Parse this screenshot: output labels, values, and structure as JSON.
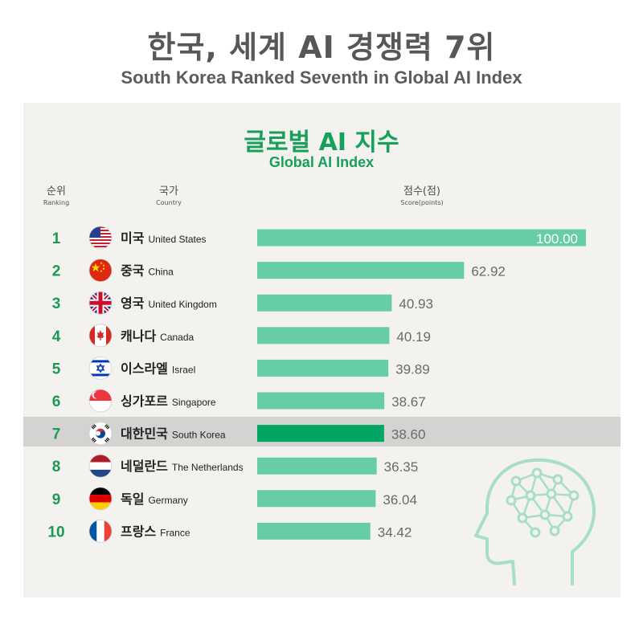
{
  "header": {
    "title_ko": "한국, 세계 AI 경쟁력 7위",
    "title_en": "South Korea Ranked Seventh in Global AI Index"
  },
  "columns": {
    "rank_ko": "순위",
    "rank_en": "Ranking",
    "country_ko": "국가",
    "country_en": "Country",
    "score_ko": "점수(점)",
    "score_en": "Score(points)"
  },
  "colors": {
    "bar": "#67cda4",
    "bar_highlight": "#00a562",
    "rank_text": "#1b9a54",
    "title_green": "#16a05a",
    "highlight_band": "#d4d3d1"
  },
  "chart_data": {
    "type": "bar",
    "orientation": "horizontal",
    "title": "글로벌 AI 지수",
    "subtitle": "Global AI Index",
    "xlim": [
      0,
      100
    ],
    "highlight": "대한민국",
    "rows": [
      {
        "rank": "1",
        "ko": "미국",
        "en": "United States",
        "value": 100.0,
        "label": "100.00",
        "flag": "us-flag-icon"
      },
      {
        "rank": "2",
        "ko": "중국",
        "en": "China",
        "value": 62.92,
        "label": "62.92",
        "flag": "china-flag-icon"
      },
      {
        "rank": "3",
        "ko": "영국",
        "en": "United Kingdom",
        "value": 40.93,
        "label": "40.93",
        "flag": "uk-flag-icon"
      },
      {
        "rank": "4",
        "ko": "캐나다",
        "en": "Canada",
        "value": 40.19,
        "label": "40.19",
        "flag": "canada-flag-icon"
      },
      {
        "rank": "5",
        "ko": "이스라엘",
        "en": "Israel",
        "value": 39.89,
        "label": "39.89",
        "flag": "israel-flag-icon"
      },
      {
        "rank": "6",
        "ko": "싱가포르",
        "en": "Singapore",
        "value": 38.67,
        "label": "38.67",
        "flag": "singapore-flag-icon"
      },
      {
        "rank": "7",
        "ko": "대한민국",
        "en": "South Korea",
        "value": 38.6,
        "label": "38.60",
        "flag": "korea-flag-icon"
      },
      {
        "rank": "8",
        "ko": "네덜란드",
        "en": "The Netherlands",
        "value": 36.35,
        "label": "36.35",
        "flag": "netherlands-flag-icon"
      },
      {
        "rank": "9",
        "ko": "독일",
        "en": "Germany",
        "value": 36.04,
        "label": "36.04",
        "flag": "germany-flag-icon"
      },
      {
        "rank": "10",
        "ko": "프랑스",
        "en": "France",
        "value": 34.42,
        "label": "34.42",
        "flag": "france-flag-icon"
      }
    ]
  }
}
